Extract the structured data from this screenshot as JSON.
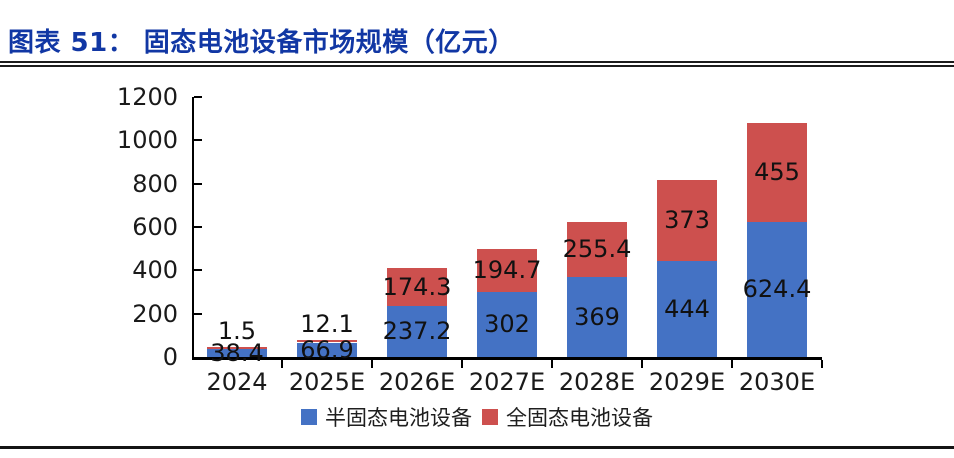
{
  "header": {
    "title": "图表 51： 固态电池设备市场规模（亿元）"
  },
  "chart_data": {
    "type": "bar",
    "stacked": true,
    "title": "固态电池设备市场规模（亿元）",
    "unit": "亿元",
    "categories": [
      "2024",
      "2025E",
      "2026E",
      "2027E",
      "2028E",
      "2029E",
      "2030E"
    ],
    "series": [
      {
        "name": "半固态电池设备",
        "color": "#4472C4",
        "values": [
          38.4,
          66.9,
          237.2,
          302,
          369,
          444,
          624.4
        ]
      },
      {
        "name": "全固态电池设备",
        "color": "#CD504E",
        "values": [
          1.5,
          12.1,
          174.3,
          194.7,
          255.4,
          373,
          455
        ]
      }
    ],
    "ylim": [
      0,
      1200
    ],
    "yticks": [
      0,
      200,
      400,
      600,
      800,
      1000,
      1200
    ],
    "grid": false,
    "data_labels": true,
    "legend_position": "bottom"
  },
  "colors": {
    "title_blue": "#1137A4",
    "axis": "#000000",
    "rule": "#1c1c1c",
    "label_text": "#111111"
  }
}
